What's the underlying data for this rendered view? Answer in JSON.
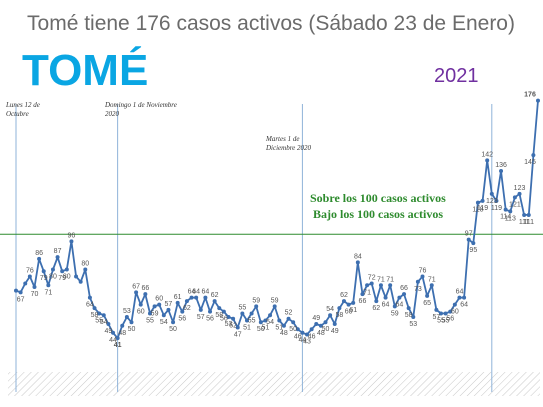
{
  "header": {
    "title": "Tomé tiene 176 casos activos (Sábado 23 de Enero)",
    "place": "TOMÉ",
    "year": "2021"
  },
  "annotations": [
    {
      "id": "ann-1",
      "lines": [
        "Lunes 12 de",
        "Octubre"
      ]
    },
    {
      "id": "ann-2",
      "lines": [
        "Domingo 1 de Noviembre",
        "2020"
      ]
    },
    {
      "id": "ann-3",
      "lines": [
        "Martes 1 de",
        "Diciembre 2020"
      ]
    }
  ],
  "threshold": {
    "value": 100,
    "above_label": "Sobre los 100 casos activos",
    "below_label": "Bajo los 100 casos activos"
  },
  "colors": {
    "line": "#3d6fb0",
    "title": "#6b6b6b",
    "place": "#0aa6e3",
    "year": "#7030a0",
    "threshold": "#2e8b2e",
    "highlight_max": "#d62728",
    "highlight_min": "#2e8b2e",
    "marker_lines": "#8fb3d9"
  },
  "chart_data": {
    "type": "line",
    "title": "",
    "xlabel": "",
    "ylabel": "",
    "ylim": [
      20,
      190
    ],
    "grid": false,
    "legend": "none",
    "series": [
      {
        "values": [
          68,
          67,
          72,
          76,
          70,
          86,
          79,
          71,
          80,
          87,
          79,
          80,
          96,
          76,
          73,
          80,
          64,
          58,
          55,
          54,
          49,
          44,
          41,
          48,
          53,
          50,
          67,
          60,
          66,
          55,
          59,
          60,
          54,
          57,
          50,
          61,
          56,
          62,
          64,
          64,
          57,
          64,
          56,
          62,
          58,
          56,
          53,
          52,
          47,
          55,
          51,
          55,
          59,
          50,
          51,
          54,
          59,
          51,
          48,
          52,
          50,
          46,
          44,
          43,
          46,
          49,
          48,
          50,
          54,
          49,
          58,
          62,
          60,
          61,
          84,
          66,
          71,
          72,
          62,
          71,
          64,
          71,
          59,
          64,
          66,
          58,
          53,
          73,
          76,
          65,
          71,
          57,
          55,
          55,
          56,
          60,
          64,
          64,
          97,
          95,
          118,
          119,
          142,
          123,
          119,
          136,
          114,
          113,
          121,
          123,
          111,
          111,
          145,
          176
        ]
      }
    ],
    "data_labels": [
      {
        "i": 1,
        "t": "67"
      },
      {
        "i": 3,
        "t": "76"
      },
      {
        "i": 4,
        "t": "70"
      },
      {
        "i": 5,
        "t": "86"
      },
      {
        "i": 6,
        "t": "79"
      },
      {
        "i": 7,
        "t": "71"
      },
      {
        "i": 8,
        "t": "80"
      },
      {
        "i": 9,
        "t": "87"
      },
      {
        "i": 10,
        "t": "79"
      },
      {
        "i": 11,
        "t": "80"
      },
      {
        "i": 12,
        "t": "96"
      },
      {
        "i": 15,
        "t": "80"
      },
      {
        "i": 16,
        "t": "64"
      },
      {
        "i": 17,
        "t": "58"
      },
      {
        "i": 18,
        "t": "55"
      },
      {
        "i": 19,
        "t": "54"
      },
      {
        "i": 20,
        "t": "49"
      },
      {
        "i": 21,
        "t": "44"
      },
      {
        "i": 22,
        "t": "41"
      },
      {
        "i": 23,
        "t": "48"
      },
      {
        "i": 24,
        "t": "53"
      },
      {
        "i": 25,
        "t": "50"
      },
      {
        "i": 26,
        "t": "67"
      },
      {
        "i": 27,
        "t": "60"
      },
      {
        "i": 28,
        "t": "66"
      },
      {
        "i": 29,
        "t": "55"
      },
      {
        "i": 30,
        "t": "59"
      },
      {
        "i": 31,
        "t": "60"
      },
      {
        "i": 32,
        "t": "54"
      },
      {
        "i": 33,
        "t": "57"
      },
      {
        "i": 34,
        "t": "50"
      },
      {
        "i": 35,
        "t": "61"
      },
      {
        "i": 36,
        "t": "56"
      },
      {
        "i": 37,
        "t": "62"
      },
      {
        "i": 38,
        "t": "64"
      },
      {
        "i": 39,
        "t": "64"
      },
      {
        "i": 40,
        "t": "57"
      },
      {
        "i": 41,
        "t": "64"
      },
      {
        "i": 42,
        "t": "56"
      },
      {
        "i": 43,
        "t": "62"
      },
      {
        "i": 44,
        "t": "58"
      },
      {
        "i": 45,
        "t": "56"
      },
      {
        "i": 46,
        "t": "53"
      },
      {
        "i": 47,
        "t": "52"
      },
      {
        "i": 48,
        "t": "47"
      },
      {
        "i": 49,
        "t": "55"
      },
      {
        "i": 50,
        "t": "51"
      },
      {
        "i": 51,
        "t": "55"
      },
      {
        "i": 52,
        "t": "59"
      },
      {
        "i": 53,
        "t": "50"
      },
      {
        "i": 54,
        "t": "51"
      },
      {
        "i": 55,
        "t": "54"
      },
      {
        "i": 56,
        "t": "59"
      },
      {
        "i": 57,
        "t": "51"
      },
      {
        "i": 58,
        "t": "48"
      },
      {
        "i": 59,
        "t": "52"
      },
      {
        "i": 60,
        "t": "50"
      },
      {
        "i": 61,
        "t": "46"
      },
      {
        "i": 62,
        "t": "44"
      },
      {
        "i": 63,
        "t": "43"
      },
      {
        "i": 64,
        "t": "46"
      },
      {
        "i": 65,
        "t": "49"
      },
      {
        "i": 66,
        "t": "48"
      },
      {
        "i": 67,
        "t": "50"
      },
      {
        "i": 68,
        "t": "54"
      },
      {
        "i": 69,
        "t": "49"
      },
      {
        "i": 70,
        "t": "58"
      },
      {
        "i": 71,
        "t": "62"
      },
      {
        "i": 72,
        "t": "60"
      },
      {
        "i": 73,
        "t": "61"
      },
      {
        "i": 74,
        "t": "84"
      },
      {
        "i": 75,
        "t": "66"
      },
      {
        "i": 76,
        "t": "71"
      },
      {
        "i": 77,
        "t": "72"
      },
      {
        "i": 78,
        "t": "62"
      },
      {
        "i": 79,
        "t": "71"
      },
      {
        "i": 80,
        "t": "64"
      },
      {
        "i": 81,
        "t": "71"
      },
      {
        "i": 82,
        "t": "59"
      },
      {
        "i": 83,
        "t": "64"
      },
      {
        "i": 84,
        "t": "66"
      },
      {
        "i": 85,
        "t": "58"
      },
      {
        "i": 86,
        "t": "53"
      },
      {
        "i": 87,
        "t": "73"
      },
      {
        "i": 88,
        "t": "76"
      },
      {
        "i": 89,
        "t": "65"
      },
      {
        "i": 90,
        "t": "71"
      },
      {
        "i": 91,
        "t": "57"
      },
      {
        "i": 92,
        "t": "55"
      },
      {
        "i": 93,
        "t": "55"
      },
      {
        "i": 94,
        "t": "56"
      },
      {
        "i": 95,
        "t": "60"
      },
      {
        "i": 96,
        "t": "64"
      },
      {
        "i": 97,
        "t": "64"
      },
      {
        "i": 98,
        "t": "97"
      },
      {
        "i": 99,
        "t": "95"
      },
      {
        "i": 100,
        "t": "118"
      },
      {
        "i": 101,
        "t": "119"
      },
      {
        "i": 102,
        "t": "142"
      },
      {
        "i": 103,
        "t": "123"
      },
      {
        "i": 104,
        "t": "119"
      },
      {
        "i": 105,
        "t": "136"
      },
      {
        "i": 106,
        "t": "114"
      },
      {
        "i": 107,
        "t": "113"
      },
      {
        "i": 108,
        "t": "121"
      },
      {
        "i": 109,
        "t": "123"
      },
      {
        "i": 110,
        "t": "111"
      },
      {
        "i": 111,
        "t": "111"
      },
      {
        "i": 112,
        "t": "145"
      },
      {
        "i": 113,
        "t": "176"
      }
    ],
    "vertical_markers": [
      0,
      22,
      62,
      103
    ]
  }
}
